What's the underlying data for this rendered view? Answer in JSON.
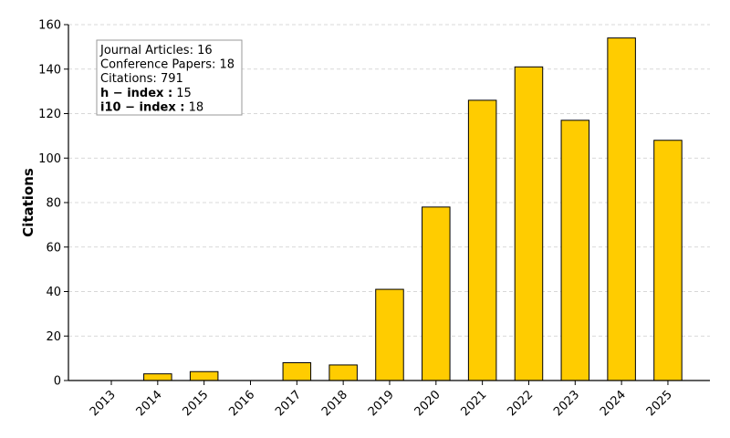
{
  "chart_data": {
    "type": "bar",
    "categories": [
      "2013",
      "2014",
      "2015",
      "2016",
      "2017",
      "2018",
      "2019",
      "2020",
      "2021",
      "2022",
      "2023",
      "2024",
      "2025"
    ],
    "values": [
      0,
      3,
      4,
      0,
      8,
      7,
      41,
      78,
      126,
      141,
      117,
      154,
      108
    ],
    "xlabel": "",
    "ylabel": "Citations",
    "ylim": [
      0,
      160
    ],
    "yticks": [
      "0",
      "20",
      "40",
      "60",
      "80",
      "100",
      "120",
      "140",
      "160"
    ],
    "grid": "horizontal dashed",
    "bar_color": "#FFCC00",
    "bar_edge_color": "#000000",
    "annotation_box": {
      "placement": "top-left",
      "lines": [
        {
          "label": "Journal Articles:",
          "value": "16",
          "bold_label": false
        },
        {
          "label": "Conference Papers:",
          "value": "18",
          "bold_label": false
        },
        {
          "label": "Citations:",
          "value": "791",
          "bold_label": false
        },
        {
          "label": "h − index :",
          "value": "15",
          "bold_label": true
        },
        {
          "label": "i10 − index :",
          "value": "18",
          "bold_label": true
        }
      ]
    }
  }
}
